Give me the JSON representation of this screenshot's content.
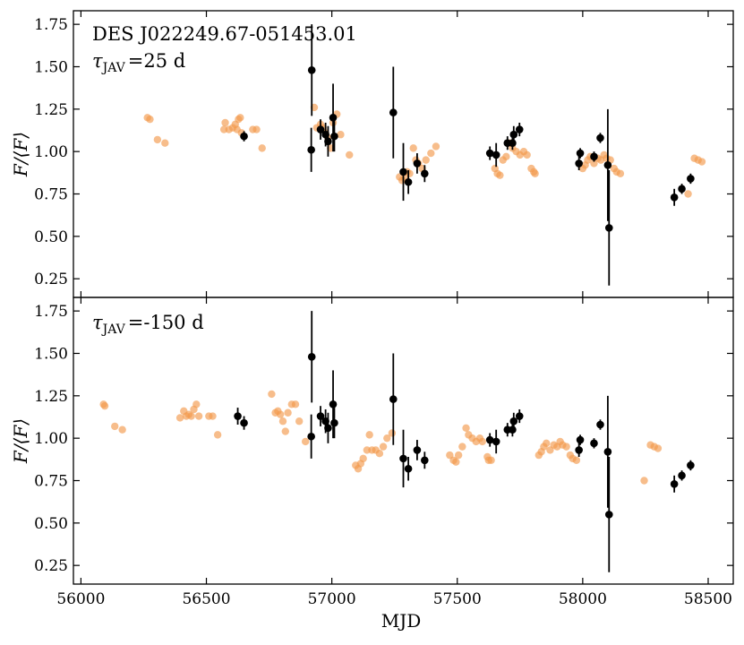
{
  "figure": {
    "xlabel": "MJD",
    "colors": {
      "orange": "#f39a4d",
      "black": "#000000"
    }
  },
  "chart_data": [
    {
      "type": "scatter",
      "panel": "top",
      "title": "",
      "annotation_object": "DES J022249.67-051453.01",
      "annotation_lag": "τ_JAV =25 d",
      "annotation_lag_parts": {
        "symbol": "τ",
        "sub": "JAV",
        "rest": "=25 d"
      },
      "xlabel": "",
      "ylabel": "F/⟨F⟩",
      "xlim": [
        55970,
        58600
      ],
      "ylim": [
        0.14,
        1.83
      ],
      "xticks": [
        56000,
        56500,
        57000,
        57500,
        58000,
        58500
      ],
      "xtick_labels": [
        "56000",
        "56500",
        "57000",
        "57500",
        "58000",
        "58500"
      ],
      "yticks": [
        0.25,
        0.5,
        0.75,
        1.0,
        1.25,
        1.5,
        1.75
      ],
      "ytick_labels": [
        "0.25",
        "0.50",
        "0.75",
        "1.00",
        "1.25",
        "1.50",
        "1.75"
      ],
      "grid": false,
      "series": [
        {
          "color": "#f39a4d",
          "marker": "circle",
          "points": [
            [
              56265,
              1.2
            ],
            [
              56275,
              1.19
            ],
            [
              56305,
              1.07
            ],
            [
              56335,
              1.05
            ],
            [
              56570,
              1.13
            ],
            [
              56575,
              1.17
            ],
            [
              56590,
              1.13
            ],
            [
              56605,
              1.14
            ],
            [
              56615,
              1.16
            ],
            [
              56622,
              1.13
            ],
            [
              56628,
              1.19
            ],
            [
              56635,
              1.2
            ],
            [
              56640,
              1.11
            ],
            [
              56685,
              1.13
            ],
            [
              56700,
              1.13
            ],
            [
              56722,
              1.02
            ],
            [
              56930,
              1.26
            ],
            [
              56940,
              1.14
            ],
            [
              56955,
              1.16
            ],
            [
              56965,
              1.14
            ],
            [
              56975,
              1.11
            ],
            [
              56985,
              1.08
            ],
            [
              56995,
              1.02
            ],
            [
              57005,
              1.17
            ],
            [
              57020,
              1.22
            ],
            [
              57035,
              1.1
            ],
            [
              57070,
              0.98
            ],
            [
              57270,
              0.85
            ],
            [
              57280,
              0.83
            ],
            [
              57290,
              0.84
            ],
            [
              57300,
              0.88
            ],
            [
              57310,
              0.87
            ],
            [
              57325,
              1.02
            ],
            [
              57335,
              0.95
            ],
            [
              57345,
              0.93
            ],
            [
              57360,
              0.9
            ],
            [
              57375,
              0.95
            ],
            [
              57395,
              0.99
            ],
            [
              57415,
              1.03
            ],
            [
              57650,
              0.9
            ],
            [
              57660,
              0.87
            ],
            [
              57670,
              0.86
            ],
            [
              57682,
              0.95
            ],
            [
              57695,
              0.97
            ],
            [
              57710,
              1.05
            ],
            [
              57720,
              1.02
            ],
            [
              57735,
              1.0
            ],
            [
              57750,
              0.98
            ],
            [
              57765,
              1.0
            ],
            [
              57778,
              0.98
            ],
            [
              57795,
              0.9
            ],
            [
              57805,
              0.88
            ],
            [
              57810,
              0.87
            ],
            [
              58000,
              0.9
            ],
            [
              58010,
              0.92
            ],
            [
              58020,
              0.95
            ],
            [
              58030,
              0.97
            ],
            [
              58045,
              0.93
            ],
            [
              58060,
              0.96
            ],
            [
              58072,
              0.95
            ],
            [
              58085,
              0.98
            ],
            [
              58095,
              0.96
            ],
            [
              58110,
              0.95
            ],
            [
              58125,
              0.9
            ],
            [
              58135,
              0.88
            ],
            [
              58150,
              0.87
            ],
            [
              58420,
              0.75
            ],
            [
              58445,
              0.96
            ],
            [
              58460,
              0.95
            ],
            [
              58475,
              0.94
            ]
          ]
        },
        {
          "color": "#000000",
          "marker": "circle",
          "errorbars": true,
          "points": [
            [
              56650,
              1.09,
              0.03
            ],
            [
              56918,
              1.01,
              0.13
            ],
            [
              56920,
              1.48,
              0.27
            ],
            [
              56955,
              1.13,
              0.06
            ],
            [
              56975,
              1.1,
              0.07
            ],
            [
              56985,
              1.06,
              0.09
            ],
            [
              57005,
              1.2,
              0.2
            ],
            [
              57010,
              1.09,
              0.09
            ],
            [
              57245,
              1.23,
              0.27
            ],
            [
              57285,
              0.88,
              0.17
            ],
            [
              57305,
              0.82,
              0.07
            ],
            [
              57340,
              0.93,
              0.06
            ],
            [
              57370,
              0.87,
              0.05
            ],
            [
              57630,
              0.99,
              0.04
            ],
            [
              57655,
              0.98,
              0.07
            ],
            [
              57700,
              1.05,
              0.04
            ],
            [
              57720,
              1.05,
              0.04
            ],
            [
              57725,
              1.1,
              0.05
            ],
            [
              57748,
              1.13,
              0.04
            ],
            [
              57985,
              0.93,
              0.04
            ],
            [
              57990,
              0.99,
              0.03
            ],
            [
              58045,
              0.97,
              0.03
            ],
            [
              58070,
              1.08,
              0.03
            ],
            [
              58100,
              0.92,
              0.33
            ],
            [
              58105,
              0.55,
              0.34
            ],
            [
              58365,
              0.73,
              0.05
            ],
            [
              58395,
              0.78,
              0.03
            ],
            [
              58430,
              0.84,
              0.03
            ]
          ]
        }
      ]
    },
    {
      "type": "scatter",
      "panel": "bottom",
      "title": "",
      "annotation_lag": "τ_JAV =-150 d",
      "annotation_lag_parts": {
        "symbol": "τ",
        "sub": "JAV",
        "rest": "=-150 d"
      },
      "xlabel": "MJD",
      "ylabel": "F/⟨F⟩",
      "xlim": [
        55970,
        58600
      ],
      "ylim": [
        0.14,
        1.83
      ],
      "xticks": [
        56000,
        56500,
        57000,
        57500,
        58000,
        58500
      ],
      "xtick_labels": [
        "56000",
        "56500",
        "57000",
        "57500",
        "58000",
        "58500"
      ],
      "yticks": [
        0.25,
        0.5,
        0.75,
        1.0,
        1.25,
        1.5,
        1.75
      ],
      "ytick_labels": [
        "0.25",
        "0.50",
        "0.75",
        "1.00",
        "1.25",
        "1.50",
        "1.75"
      ],
      "grid": false,
      "series": [
        {
          "color": "#f39a4d",
          "marker": "circle",
          "points": [
            [
              56090,
              1.2
            ],
            [
              56095,
              1.19
            ],
            [
              56135,
              1.07
            ],
            [
              56165,
              1.05
            ],
            [
              56395,
              1.12
            ],
            [
              56410,
              1.16
            ],
            [
              56420,
              1.13
            ],
            [
              56430,
              1.14
            ],
            [
              56440,
              1.13
            ],
            [
              56450,
              1.17
            ],
            [
              56460,
              1.2
            ],
            [
              56470,
              1.13
            ],
            [
              56510,
              1.13
            ],
            [
              56525,
              1.13
            ],
            [
              56545,
              1.02
            ],
            [
              56760,
              1.26
            ],
            [
              56775,
              1.15
            ],
            [
              56785,
              1.16
            ],
            [
              56795,
              1.14
            ],
            [
              56805,
              1.1
            ],
            [
              56815,
              1.04
            ],
            [
              56825,
              1.15
            ],
            [
              56840,
              1.2
            ],
            [
              56855,
              1.2
            ],
            [
              56870,
              1.1
            ],
            [
              56895,
              0.98
            ],
            [
              57095,
              0.84
            ],
            [
              57105,
              0.82
            ],
            [
              57115,
              0.85
            ],
            [
              57125,
              0.88
            ],
            [
              57140,
              0.93
            ],
            [
              57150,
              1.02
            ],
            [
              57160,
              0.93
            ],
            [
              57175,
              0.93
            ],
            [
              57190,
              0.91
            ],
            [
              57205,
              0.95
            ],
            [
              57220,
              1.0
            ],
            [
              57240,
              1.03
            ],
            [
              57470,
              0.9
            ],
            [
              57485,
              0.87
            ],
            [
              57495,
              0.86
            ],
            [
              57505,
              0.9
            ],
            [
              57520,
              0.95
            ],
            [
              57535,
              1.06
            ],
            [
              57545,
              1.02
            ],
            [
              57560,
              1.0
            ],
            [
              57575,
              0.98
            ],
            [
              57590,
              1.0
            ],
            [
              57600,
              0.98
            ],
            [
              57620,
              0.89
            ],
            [
              57625,
              0.87
            ],
            [
              57635,
              0.87
            ],
            [
              57825,
              0.9
            ],
            [
              57835,
              0.92
            ],
            [
              57845,
              0.95
            ],
            [
              57855,
              0.97
            ],
            [
              57870,
              0.93
            ],
            [
              57885,
              0.96
            ],
            [
              57898,
              0.95
            ],
            [
              57910,
              0.98
            ],
            [
              57920,
              0.96
            ],
            [
              57935,
              0.95
            ],
            [
              57950,
              0.9
            ],
            [
              57960,
              0.88
            ],
            [
              57975,
              0.87
            ],
            [
              58245,
              0.75
            ],
            [
              58270,
              0.96
            ],
            [
              58285,
              0.95
            ],
            [
              58300,
              0.94
            ]
          ]
        },
        {
          "color": "#000000",
          "marker": "circle",
          "errorbars": true,
          "points": [
            [
              56625,
              1.13,
              0.05
            ],
            [
              56650,
              1.09,
              0.04
            ],
            [
              56918,
              1.01,
              0.13
            ],
            [
              56920,
              1.48,
              0.27
            ],
            [
              56955,
              1.13,
              0.06
            ],
            [
              56975,
              1.1,
              0.07
            ],
            [
              56985,
              1.06,
              0.09
            ],
            [
              57005,
              1.2,
              0.2
            ],
            [
              57010,
              1.09,
              0.09
            ],
            [
              57245,
              1.23,
              0.27
            ],
            [
              57285,
              0.88,
              0.17
            ],
            [
              57305,
              0.82,
              0.07
            ],
            [
              57340,
              0.93,
              0.06
            ],
            [
              57370,
              0.87,
              0.05
            ],
            [
              57630,
              0.99,
              0.04
            ],
            [
              57655,
              0.98,
              0.07
            ],
            [
              57700,
              1.05,
              0.04
            ],
            [
              57720,
              1.05,
              0.04
            ],
            [
              57725,
              1.1,
              0.05
            ],
            [
              57748,
              1.13,
              0.04
            ],
            [
              57985,
              0.93,
              0.04
            ],
            [
              57990,
              0.99,
              0.03
            ],
            [
              58045,
              0.97,
              0.03
            ],
            [
              58070,
              1.08,
              0.03
            ],
            [
              58100,
              0.92,
              0.33
            ],
            [
              58105,
              0.55,
              0.34
            ],
            [
              58365,
              0.73,
              0.05
            ],
            [
              58395,
              0.78,
              0.03
            ],
            [
              58430,
              0.84,
              0.03
            ]
          ]
        }
      ]
    }
  ]
}
